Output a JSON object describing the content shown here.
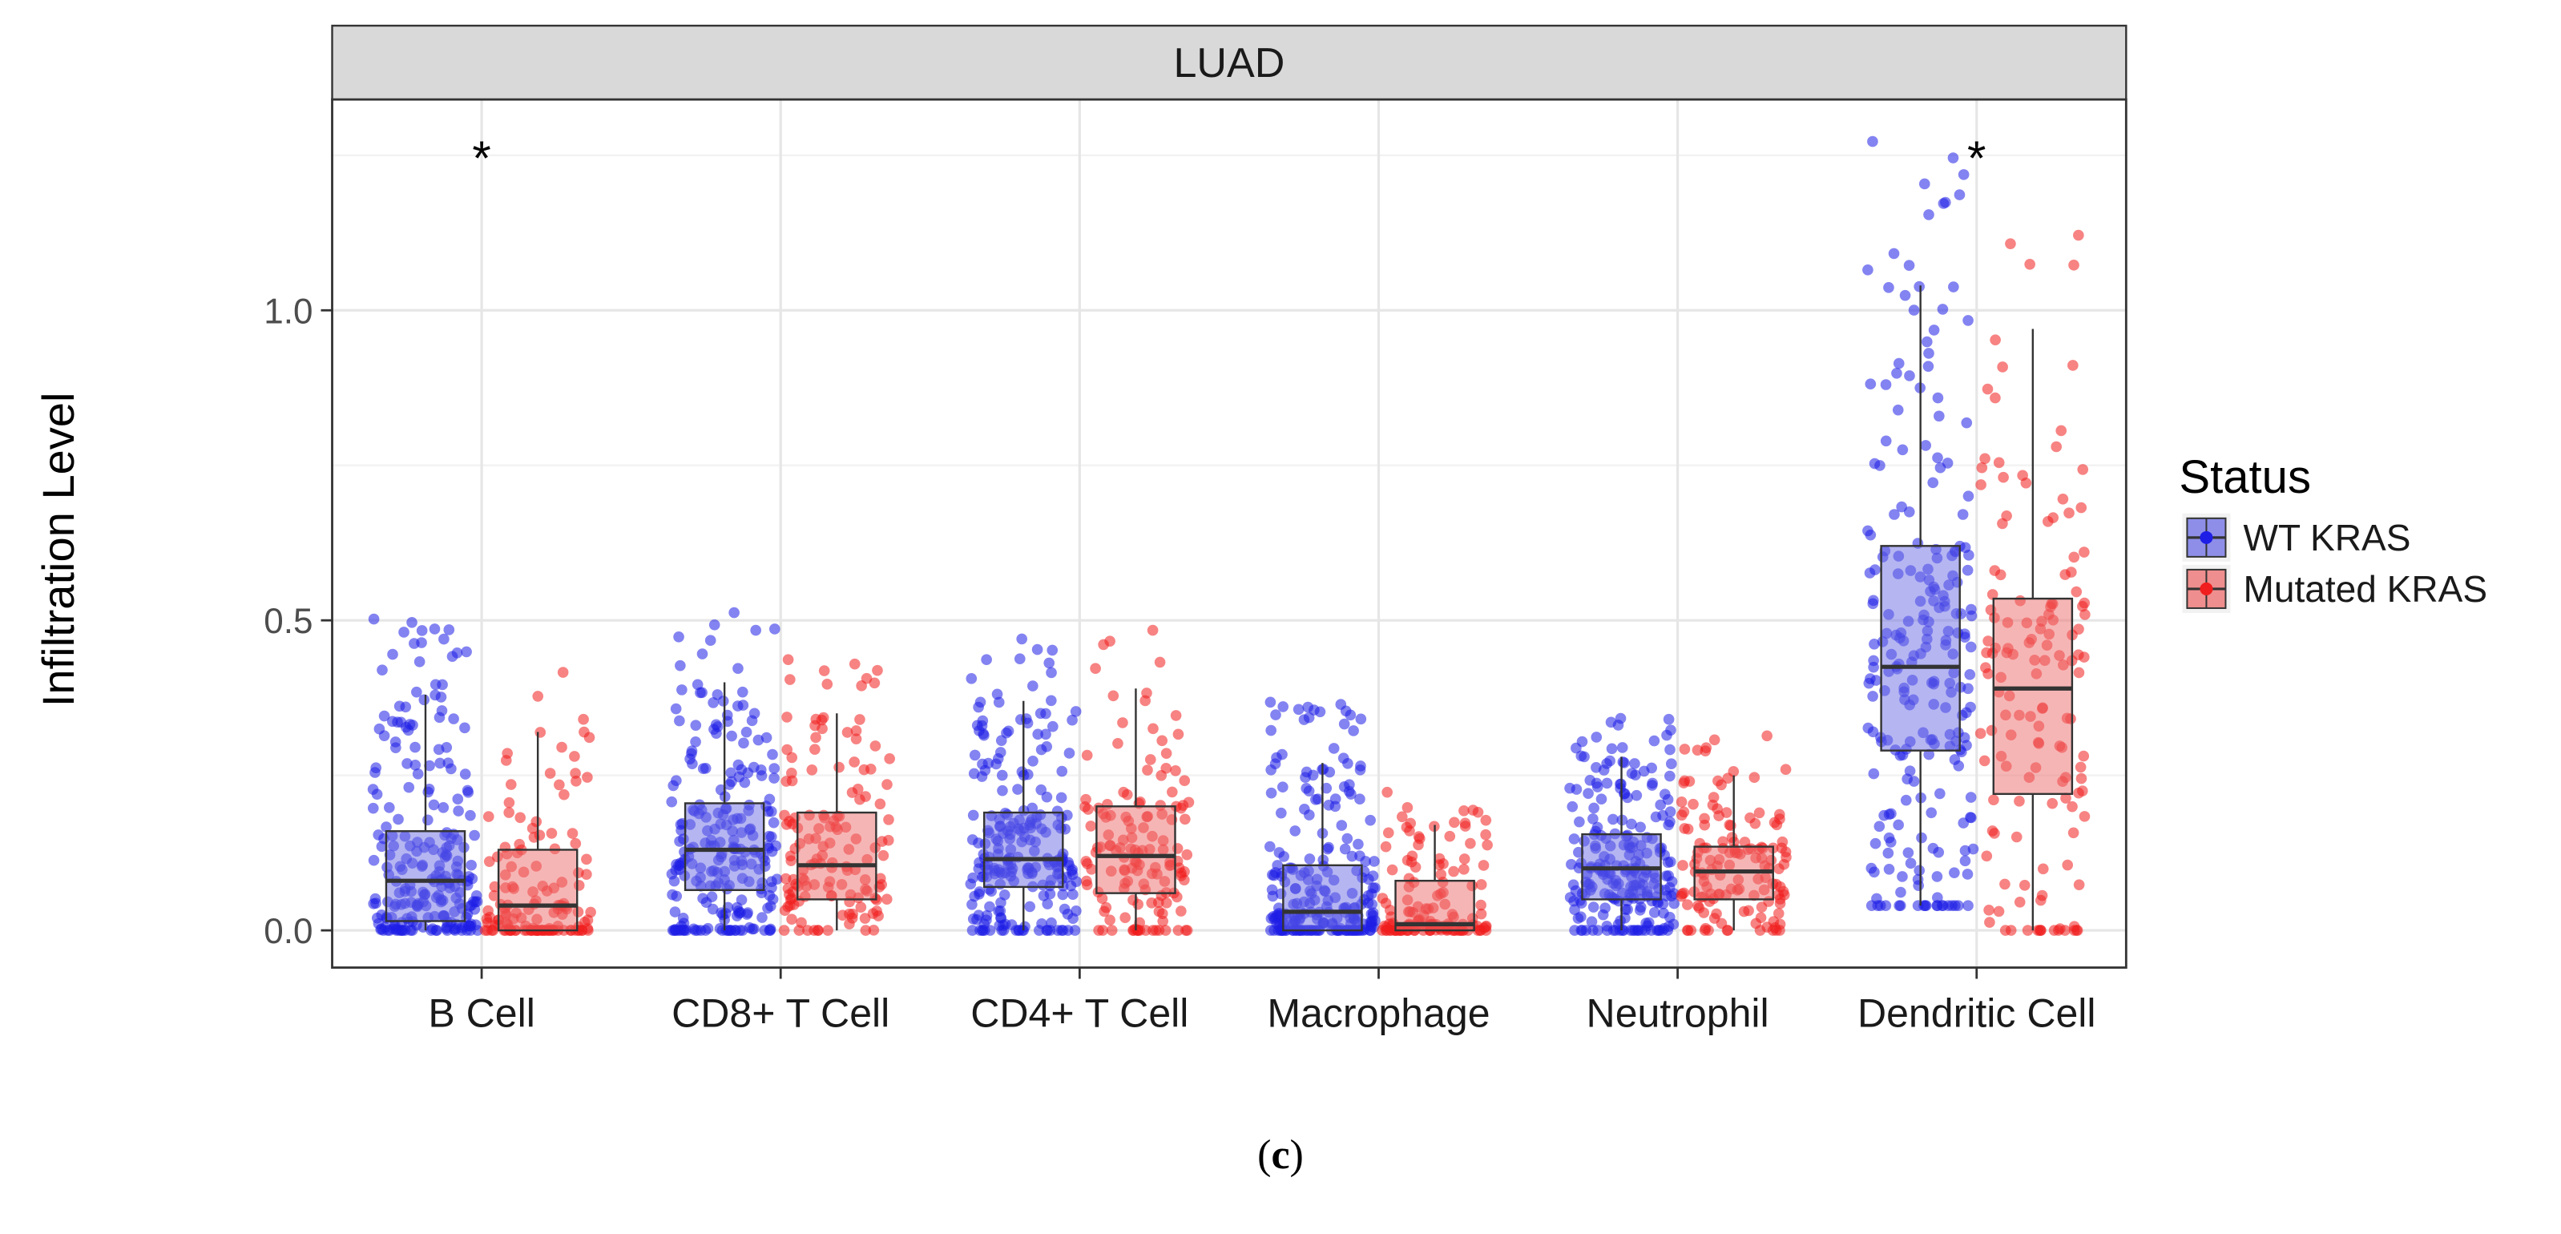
{
  "chart_data": {
    "type": "boxplot",
    "panel_title": "LUAD",
    "ylabel": "Infiltration Level",
    "xlabel": "",
    "ylim": [
      -0.06,
      1.34
    ],
    "yticks": [
      0.0,
      0.5,
      1.0
    ],
    "ytick_labels": [
      "0.0",
      "0.5",
      "1.0"
    ],
    "categories": [
      "B Cell",
      "CD8+ T Cell",
      "CD4+ T Cell",
      "Macrophage",
      "Neutrophil",
      "Dendritic Cell"
    ],
    "significance": [
      "*",
      "",
      "",
      "",
      "",
      "*"
    ],
    "legend": {
      "title": "Status",
      "position": "right",
      "entries": [
        "WT KRAS",
        "Mutated KRAS"
      ]
    },
    "series": [
      {
        "name": "WT KRAS",
        "color": "#1e1ee6",
        "box_color": "#6c6ce6",
        "boxes": [
          {
            "min": 0.0,
            "q1": 0.015,
            "median": 0.08,
            "q3": 0.16,
            "max": 0.38
          },
          {
            "min": 0.0,
            "q1": 0.065,
            "median": 0.13,
            "q3": 0.205,
            "max": 0.4
          },
          {
            "min": 0.0,
            "q1": 0.07,
            "median": 0.115,
            "q3": 0.19,
            "max": 0.37
          },
          {
            "min": 0.0,
            "q1": 0.0,
            "median": 0.03,
            "q3": 0.105,
            "max": 0.27
          },
          {
            "min": 0.0,
            "q1": 0.05,
            "median": 0.1,
            "q3": 0.155,
            "max": 0.28
          },
          {
            "min": 0.04,
            "q1": 0.29,
            "median": 0.425,
            "q3": 0.62,
            "max": 1.04
          }
        ]
      },
      {
        "name": "Mutated KRAS",
        "color": "#f01e1e",
        "box_color": "#ee6c6c",
        "boxes": [
          {
            "min": 0.0,
            "q1": 0.0,
            "median": 0.04,
            "q3": 0.13,
            "max": 0.32
          },
          {
            "min": 0.0,
            "q1": 0.05,
            "median": 0.105,
            "q3": 0.19,
            "max": 0.35
          },
          {
            "min": 0.0,
            "q1": 0.06,
            "median": 0.12,
            "q3": 0.2,
            "max": 0.39
          },
          {
            "min": 0.0,
            "q1": 0.0,
            "median": 0.01,
            "q3": 0.08,
            "max": 0.17
          },
          {
            "min": 0.0,
            "q1": 0.05,
            "median": 0.095,
            "q3": 0.135,
            "max": 0.25
          },
          {
            "min": 0.0,
            "q1": 0.22,
            "median": 0.39,
            "q3": 0.535,
            "max": 0.97
          }
        ]
      }
    ]
  },
  "caption": {
    "open": "(",
    "letter": "c",
    "close": ")"
  }
}
